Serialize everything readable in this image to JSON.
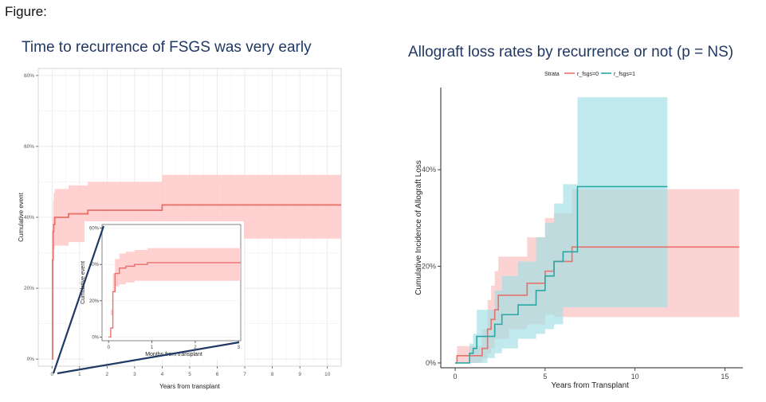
{
  "page_label": "Figure:",
  "chart_data": [
    {
      "type": "step-line",
      "title": "Time to recurrence of FSGS was very early",
      "xlabel": "Years from transplant",
      "ylabel": "Cumulative event",
      "xlim": [
        -0.5,
        10.5
      ],
      "ylim": [
        -0.02,
        0.82
      ],
      "x_ticks": [
        0,
        1,
        2,
        3,
        4,
        5,
        6,
        7,
        8,
        9,
        10
      ],
      "y_ticks": [
        0,
        0.2,
        0.4,
        0.6,
        0.8
      ],
      "y_tick_labels": [
        "0%",
        "20%",
        "40%",
        "60%",
        "80%"
      ],
      "grid": true,
      "color": "#e8716b",
      "band_color": "#ffc9c9",
      "series": [
        {
          "x": [
            0,
            0.02,
            0.04,
            0.06,
            0.1,
            0.6,
            1.3,
            4.0,
            10.5
          ],
          "y": [
            0,
            0.28,
            0.36,
            0.38,
            0.4,
            0.41,
            0.42,
            0.435,
            0.435
          ],
          "lower": [
            0,
            0.15,
            0.27,
            0.3,
            0.31,
            0.32,
            0.33,
            0.34,
            0.34
          ],
          "upper": [
            0,
            0.4,
            0.45,
            0.47,
            0.48,
            0.49,
            0.5,
            0.52,
            0.52
          ]
        }
      ],
      "inset": {
        "xlabel": "Months from transplant",
        "ylabel": "Cumulative event",
        "xlim": [
          -0.15,
          3.05
        ],
        "ylim": [
          -0.02,
          0.62
        ],
        "x_ticks": [
          0,
          1,
          2,
          3
        ],
        "y_ticks": [
          0,
          0.2,
          0.4,
          0.6
        ],
        "y_tick_labels": [
          "0%",
          "20%",
          "40%",
          "60%"
        ],
        "series": [
          {
            "x": [
              0,
              0.05,
              0.1,
              0.15,
              0.25,
              0.4,
              0.6,
              0.9,
              3.05
            ],
            "y": [
              0,
              0.05,
              0.25,
              0.35,
              0.38,
              0.39,
              0.4,
              0.41,
              0.41
            ],
            "lower": [
              0,
              0.0,
              0.15,
              0.25,
              0.28,
              0.29,
              0.3,
              0.31,
              0.31
            ],
            "upper": [
              0,
              0.12,
              0.35,
              0.43,
              0.46,
              0.47,
              0.48,
              0.49,
              0.49
            ]
          }
        ]
      }
    },
    {
      "type": "step-line",
      "title": "Allograft loss rates by recurrence or not (p = NS)",
      "xlabel": "Years from Transplant",
      "ylabel": "Cumulative Incidence of Allograft Loss",
      "legend_title": "Strata",
      "legend_position": "top",
      "xlim": [
        -0.8,
        16
      ],
      "ylim": [
        -0.01,
        0.57
      ],
      "x_ticks": [
        0,
        5,
        10,
        15
      ],
      "y_ticks": [
        0,
        0.2,
        0.4
      ],
      "y_tick_labels": [
        "0%",
        "20%",
        "40%"
      ],
      "grid": false,
      "series": [
        {
          "name": "r_fsgs=0",
          "color": "#e8716b",
          "band_color": "#fbbcbc",
          "x": [
            0,
            0.1,
            0.3,
            1.5,
            1.8,
            2.0,
            2.2,
            2.4,
            3.0,
            4.0,
            5.0,
            5.5,
            6.5,
            15.8
          ],
          "y": [
            0,
            0.015,
            0.015,
            0.03,
            0.07,
            0.09,
            0.11,
            0.14,
            0.14,
            0.165,
            0.19,
            0.21,
            0.24,
            0.24
          ],
          "lower": [
            0,
            0.0,
            0.0,
            0.0,
            0.01,
            0.02,
            0.03,
            0.05,
            0.05,
            0.07,
            0.08,
            0.1,
            0.095,
            0.095
          ],
          "upper": [
            0,
            0.035,
            0.035,
            0.07,
            0.13,
            0.16,
            0.19,
            0.22,
            0.22,
            0.26,
            0.3,
            0.31,
            0.36,
            0.36
          ]
        },
        {
          "name": "r_fsgs=1",
          "color": "#2aa7a5",
          "band_color": "#9edfe3",
          "x": [
            0,
            0.8,
            1.0,
            1.2,
            1.8,
            2.2,
            2.6,
            3.5,
            4.5,
            5.0,
            5.5,
            6.0,
            6.8,
            11.8
          ],
          "y": [
            0,
            0.02,
            0.03,
            0.055,
            0.055,
            0.08,
            0.1,
            0.12,
            0.15,
            0.18,
            0.21,
            0.23,
            0.365,
            0.365
          ],
          "lower": [
            0,
            0.0,
            0.0,
            0.0,
            0.0,
            0.01,
            0.02,
            0.03,
            0.05,
            0.06,
            0.07,
            0.08,
            0.115,
            0.115
          ],
          "upper": [
            0,
            0.04,
            0.06,
            0.11,
            0.11,
            0.15,
            0.18,
            0.21,
            0.26,
            0.29,
            0.33,
            0.37,
            0.55,
            0.55
          ]
        }
      ]
    }
  ]
}
